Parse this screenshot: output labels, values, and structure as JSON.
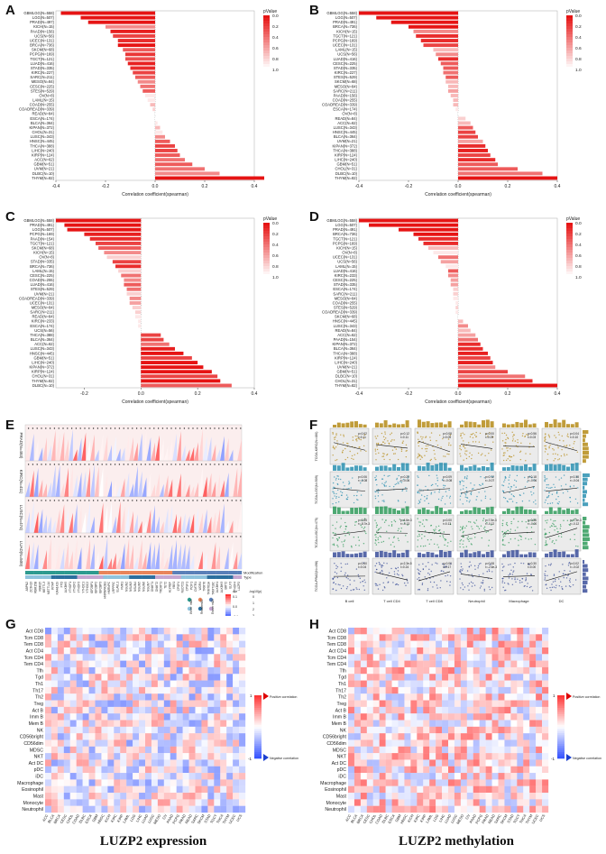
{
  "panel_labels": [
    "A",
    "B",
    "C",
    "D",
    "E",
    "F",
    "G",
    "H"
  ],
  "legend_title": "pValue",
  "legend_ticks": [
    "0.0",
    "0.2",
    "0.4",
    "0.6",
    "0.8",
    "1.0"
  ],
  "xlabel": "Correlation coefficient(spearman)",
  "chart_data": [
    {
      "type": "bar",
      "id": "A",
      "xlim": [
        -0.4,
        0.4
      ],
      "xticks": [
        "-0.4",
        "-0.2",
        "0.0",
        "0.2",
        "0.4"
      ],
      "categories": [
        "GBMLGG(N=558)",
        "LGG(N=507)",
        "PRAD(N=497)",
        "KICH(N=15)",
        "PAAD(N=156)",
        "UCS(N=56)",
        "UCEC(N=131)",
        "BRCA(N=736)",
        "SKCM(N=68)",
        "PCPG(N=169)",
        "TGCT(N=121)",
        "LUAD(N=416)",
        "STAD(N=335)",
        "KIRC(N=227)",
        "SARC(N=211)",
        "MESO(N=84)",
        "CESC(N=225)",
        "STES(N=529)",
        "OV(N=8)",
        "LAML(N=15)",
        "COAD(N=255)",
        "COADREAD(N=339)",
        "READ(N=84)",
        "ESCA(N=174)",
        "BLCA(N=364)",
        "KIPAN(N=372)",
        "CHOL(N=31)",
        "LUSC(N=343)",
        "HNSC(N=445)",
        "THCA(N=388)",
        "LIHC(N=240)",
        "KIRP(N=124)",
        "ACC(N=62)",
        "GBM(N=51)",
        "UVM(N=21)",
        "DLBC(N=10)",
        "THYM(N=82)"
      ],
      "values": [
        -0.38,
        -0.3,
        -0.27,
        -0.2,
        -0.18,
        -0.17,
        -0.15,
        -0.15,
        -0.13,
        -0.12,
        -0.12,
        -0.11,
        -0.1,
        -0.09,
        -0.08,
        -0.07,
        -0.06,
        -0.05,
        -0.04,
        -0.03,
        -0.02,
        -0.01,
        0.0,
        0.0,
        0.01,
        0.02,
        0.03,
        0.04,
        0.06,
        0.08,
        0.09,
        0.1,
        0.12,
        0.15,
        0.2,
        0.26,
        0.44
      ],
      "pvalues": [
        0.0,
        0.0,
        0.0,
        0.5,
        0.05,
        0.2,
        0.1,
        0.0,
        0.3,
        0.15,
        0.25,
        0.05,
        0.1,
        0.2,
        0.3,
        0.5,
        0.4,
        0.3,
        0.9,
        0.9,
        0.7,
        0.8,
        1.0,
        1.0,
        0.9,
        0.7,
        0.9,
        0.5,
        0.3,
        0.2,
        0.2,
        0.3,
        0.4,
        0.3,
        0.4,
        0.5,
        0.0
      ]
    },
    {
      "type": "bar",
      "id": "B",
      "xlim": [
        -0.4,
        0.4
      ],
      "xticks": [
        "-0.4",
        "-0.2",
        "0.0",
        "0.2",
        "0.4"
      ],
      "categories": [
        "GBMLGG(N=558)",
        "LGG(N=507)",
        "PRAD(N=491)",
        "BRCA(N=736)",
        "KICH(N=15)",
        "TGCT(N=121)",
        "PCPG(N=169)",
        "UCEC(N=131)",
        "LAML(N=15)",
        "UCS(N=56)",
        "LUAD(N=416)",
        "CESC(N=225)",
        "STAD(N=335)",
        "KIRC(N=227)",
        "STES(N=529)",
        "SKCM(N=68)",
        "MESO(N=84)",
        "SARC(N=211)",
        "PAAD(N=156)",
        "COAD(N=255)",
        "COADREAD(N=339)",
        "ESCA(N=174)",
        "OV(N=8)",
        "READ(N=84)",
        "ACC(N=62)",
        "LUSC(N=343)",
        "HNSC(N=445)",
        "BLCA(N=364)",
        "UVM(N=21)",
        "KIPAN(N=372)",
        "THCA(N=388)",
        "KIRP(N=124)",
        "LIHC(N=240)",
        "GBM(N=51)",
        "CHOL(N=31)",
        "DLBC(N=10)",
        "THYM(N=82)"
      ],
      "values": [
        -0.4,
        -0.33,
        -0.27,
        -0.2,
        -0.18,
        -0.17,
        -0.15,
        -0.14,
        -0.1,
        -0.09,
        -0.08,
        -0.07,
        -0.06,
        -0.06,
        -0.05,
        -0.05,
        -0.04,
        -0.04,
        -0.03,
        -0.02,
        -0.02,
        -0.01,
        0.0,
        0.03,
        0.05,
        0.06,
        0.07,
        0.08,
        0.1,
        0.11,
        0.12,
        0.13,
        0.15,
        0.16,
        0.24,
        0.34,
        0.4
      ],
      "pvalues": [
        0.0,
        0.0,
        0.0,
        0.0,
        0.5,
        0.1,
        0.1,
        0.2,
        0.7,
        0.5,
        0.1,
        0.3,
        0.3,
        0.4,
        0.3,
        0.7,
        0.7,
        0.6,
        0.7,
        0.7,
        0.7,
        0.9,
        1.0,
        0.8,
        0.7,
        0.3,
        0.2,
        0.2,
        0.6,
        0.1,
        0.05,
        0.2,
        0.1,
        0.3,
        0.3,
        0.4,
        0.0
      ]
    },
    {
      "type": "bar",
      "id": "C",
      "xlim": [
        -0.3,
        0.4
      ],
      "xticks": [
        "-0.2",
        "0.0",
        "0.2",
        "0.4"
      ],
      "categories": [
        "GBMLGG(N=558)",
        "PRAD(N=491)",
        "LGG(N=507)",
        "PCPG(N=169)",
        "PAAD(N=154)",
        "TGCT(N=121)",
        "SKCM(N=68)",
        "KICH(N=15)",
        "OV(N=8)",
        "STAD(N=335)",
        "BRCA(N=736)",
        "LAML(N=15)",
        "CESC(N=225)",
        "COAD(N=255)",
        "LUAD(N=416)",
        "STES(N=529)",
        "UVM(N=21)",
        "COADREAD(N=339)",
        "UCEC(N=131)",
        "MESO(N=84)",
        "SARC(N=211)",
        "READ(N=84)",
        "KIRC(N=233)",
        "ESCA(N=174)",
        "UCS(N=56)",
        "THCA(N=388)",
        "BLCA(N=364)",
        "ACC(N=62)",
        "LUSC(N=343)",
        "HNSC(N=445)",
        "GBM(N=51)",
        "LIHC(N=240)",
        "KIPAN(N=372)",
        "KIRP(N=124)",
        "CHOL(N=31)",
        "THYM(N=82)",
        "DLBC(N=10)"
      ],
      "values": [
        -0.3,
        -0.27,
        -0.26,
        -0.2,
        -0.18,
        -0.16,
        -0.15,
        -0.13,
        -0.12,
        -0.1,
        -0.09,
        -0.08,
        -0.07,
        -0.06,
        -0.06,
        -0.05,
        -0.05,
        -0.04,
        -0.04,
        -0.03,
        -0.02,
        -0.02,
        -0.01,
        -0.01,
        0.0,
        0.07,
        0.08,
        0.1,
        0.12,
        0.15,
        0.18,
        0.2,
        0.22,
        0.25,
        0.27,
        0.28,
        0.32
      ],
      "pvalues": [
        0.0,
        0.0,
        0.0,
        0.05,
        0.1,
        0.2,
        0.3,
        0.5,
        0.8,
        0.2,
        0.1,
        0.8,
        0.4,
        0.5,
        0.3,
        0.4,
        0.8,
        0.5,
        0.6,
        0.8,
        0.8,
        0.9,
        0.9,
        0.9,
        1.0,
        0.2,
        0.2,
        0.4,
        0.05,
        0.0,
        0.2,
        0.0,
        0.0,
        0.0,
        0.2,
        0.0,
        0.3
      ]
    },
    {
      "type": "bar",
      "id": "D",
      "xlim": [
        -0.4,
        0.4
      ],
      "xticks": [
        "-0.4",
        "-0.2",
        "0.0",
        "0.2",
        "0.4"
      ],
      "categories": [
        "GBMLGG(N=558)",
        "LGG(N=507)",
        "PRAD(N=491)",
        "BRCA(N=736)",
        "TGCT(N=121)",
        "PCPG(N=169)",
        "KICH(N=15)",
        "OV(N=8)",
        "UCEC(N=131)",
        "UCS(N=56)",
        "LAML(N=15)",
        "LUAD(N=416)",
        "KIRC(N=233)",
        "CESC(N=225)",
        "STAD(N=335)",
        "ESCA(N=174)",
        "SARC(N=211)",
        "MESO(N=84)",
        "COAD(N=255)",
        "STES(N=529)",
        "COADREAD(N=339)",
        "SKCM(N=68)",
        "HNSC(N=445)",
        "LUSC(N=343)",
        "READ(N=84)",
        "ACC(N=62)",
        "PAAD(N=154)",
        "KIPAN(N=372)",
        "BLCA(N=364)",
        "THCA(N=388)",
        "KIRP(N=124)",
        "LIHC(N=240)",
        "UVM(N=21)",
        "GBM(N=51)",
        "DLBC(N=10)",
        "CHOL(N=31)",
        "THYM(N=82)"
      ],
      "values": [
        -0.4,
        -0.36,
        -0.24,
        -0.18,
        -0.16,
        -0.14,
        -0.12,
        -0.1,
        -0.08,
        -0.07,
        -0.05,
        -0.04,
        -0.04,
        -0.03,
        -0.03,
        -0.02,
        -0.02,
        -0.02,
        -0.01,
        -0.01,
        -0.01,
        0.0,
        0.02,
        0.04,
        0.05,
        0.07,
        0.08,
        0.09,
        0.1,
        0.12,
        0.13,
        0.14,
        0.15,
        0.2,
        0.27,
        0.3,
        0.4
      ],
      "pvalues": [
        0.0,
        0.0,
        0.0,
        0.0,
        0.1,
        0.1,
        0.7,
        0.9,
        0.4,
        0.6,
        0.9,
        0.3,
        0.5,
        0.6,
        0.6,
        0.8,
        0.8,
        0.9,
        0.9,
        0.8,
        0.9,
        1.0,
        0.7,
        0.5,
        0.7,
        0.6,
        0.4,
        0.1,
        0.1,
        0.05,
        0.2,
        0.05,
        0.5,
        0.2,
        0.4,
        0.1,
        0.0
      ]
    }
  ],
  "panel_e": {
    "rows": [
      "PRAD(N=493)",
      "KIRC(N=411)",
      "LUSC(N=474)",
      "LUAD(N=509)"
    ],
    "genes": [
      "ABPN2",
      "ZC3H13",
      "RBM15B",
      "RBM15",
      "METTL3",
      "METTL14",
      "WTAP",
      "KIAA1429",
      "FTO",
      "ALKBH5",
      "YTHDF1",
      "YTHDF2",
      "YTHDF3",
      "YTHDC1",
      "YTHDC2",
      "IGF2BP1",
      "IGF2BP2",
      "IGF2BP3",
      "HNRNPA2B1",
      "HNRNPC",
      "LRPPRC",
      "ELAVL1",
      "FMR1",
      "NSUN2",
      "NSUN3",
      "NSUN4",
      "NSUN5",
      "NSUN6",
      "NSUN7",
      "DNMT1",
      "DNMT2",
      "TRDMT1",
      "TET2",
      "ALYREF",
      "YBX1",
      "CPSF4",
      "NUDT21",
      "CPSF1",
      "PCIF1",
      "CMTR1",
      "WDR4",
      "TRMT6",
      "TRMT61A",
      "TRMT10C",
      "ALKBH1",
      "ALKBH3",
      "BMT2",
      "ELF3",
      "YTHDF4",
      "LUZP2"
    ],
    "track_labels": [
      "Modification",
      "Type"
    ],
    "legend_labels": [
      "m6A",
      "m5C",
      "m1A",
      "Writer",
      "Reader",
      "Eraser"
    ],
    "legend_scale_title": "cor",
    "legend_scale_ticks": [
      "0.1",
      "0.0",
      "-0.1"
    ],
    "legend_sig_title": "-log10(p)",
    "legend_sig_ticks": [
      "0",
      "1",
      "2",
      "3"
    ]
  },
  "panel_f": {
    "rows": [
      "TCGA-KIRC(N=480)",
      "TCGA-LGG(N=509)",
      "TCGA-LUSC(N=475)",
      "TCGA-PRAD(N=498)"
    ],
    "cols": [
      "B cell",
      "T cell CD4",
      "T cell CD8",
      "Neutrophil",
      "Macrophage",
      "DC"
    ],
    "row_colors": [
      "#b58b17",
      "#2a8fb0",
      "#2f9a5a",
      "#3b4f9a"
    ],
    "stats": [
      [
        "p=0.02\nr=0.11",
        "p=0.12\nr=0.11",
        "p=0.08\nr=0.09",
        "p=0.00\nr=0.09",
        "p=0.56\nr=0.03",
        "p=0.04\nr=0.10"
      ],
      [
        "p=0.06\nr=-0.08",
        "p=0.20\nr=-0.06",
        "p=0.09\nr=-0.08",
        "p=0.12\nr=-0.07",
        "p=0.18\nr=-0.06",
        "p=0.38\nr=-0.04"
      ],
      [
        "p=0.85\nr=-8.7e-3",
        "p=4.6e-3\nr=-0.13",
        "p=0.00\nr=0.13",
        "p=7.5e-3\nr=-0.12",
        "p=0.86\nr=-0.00",
        "p=7.3e-3\nr=-0.12"
      ],
      [
        "p=0.60\nr=0.04",
        "p=2.3e-5\nr=0.24",
        "p=0.00\nr=0.17",
        "p=0.08\nr=-2.6e-3",
        "p=0.30\nr=0.00",
        "p=0.02\nr=-0.02"
      ]
    ]
  },
  "panel_g": {
    "cells": [
      "Act CD8",
      "Tcm CD8",
      "Tem CD8",
      "Act CD4",
      "Tcm CD4",
      "Tem CD4",
      "Tfh",
      "Tgd",
      "Th1",
      "Th17",
      "Th2",
      "Treg",
      "Act B",
      "Imm B",
      "Mem B",
      "NK",
      "CD56bright",
      "CD56dim",
      "MDSC",
      "NKT",
      "Act DC",
      "pDC",
      "iDC",
      "Macrophage",
      "Eosinophil",
      "Mast",
      "Monocyte",
      "Neutrophil"
    ],
    "cancers": [
      "ACC",
      "BLCA",
      "BRCA",
      "CESC",
      "CHOL",
      "COAD",
      "DLBC",
      "ESCA",
      "GBM",
      "HNSC",
      "KICH",
      "KIRC",
      "KIRP",
      "LAML",
      "LGG",
      "LIHC",
      "LUAD",
      "LUSC",
      "MESO",
      "OV",
      "PAAD",
      "PCPG",
      "PRAD",
      "READ",
      "SARC",
      "SKCM",
      "STAD",
      "TGCT",
      "THCA",
      "THYM",
      "UCEC",
      "UCS"
    ],
    "legend_pos": "Positive correlation",
    "legend_neg": "Negative correlation",
    "legend_top": "1",
    "legend_bottom": "-1",
    "caption": "LUZP2 expression"
  },
  "panel_h": {
    "caption": "LUZP2 methylation"
  }
}
